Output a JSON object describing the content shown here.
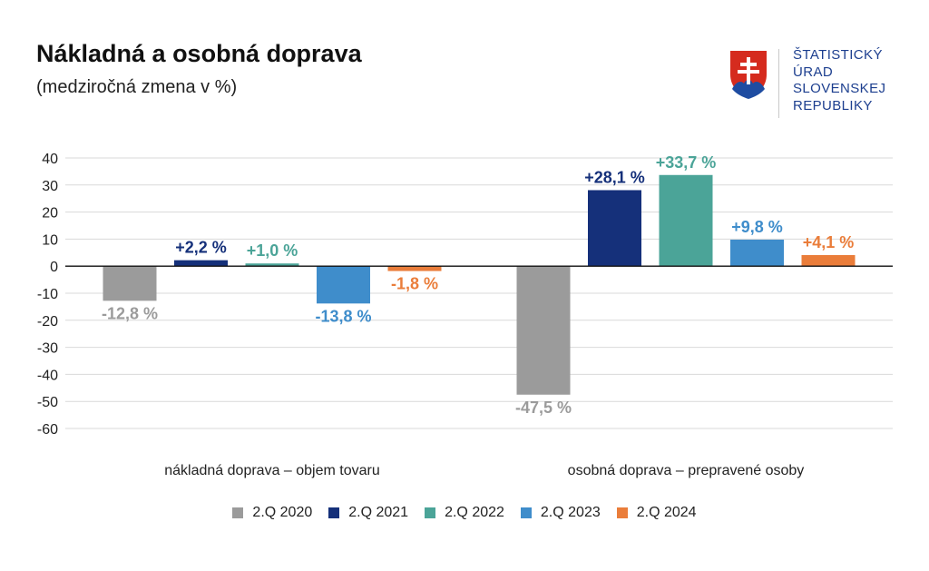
{
  "title": "Nákladná a osobná doprava",
  "subtitle": "(medziročná zmena v %)",
  "logo": {
    "lines": [
      "ŠTATISTICKÝ",
      "ÚRAD",
      "SLOVENSKEJ",
      "REPUBLIKY"
    ],
    "icon": "slovak-coat-of-arms-icon"
  },
  "colors": {
    "2020": "#9b9b9b",
    "2021": "#15307a",
    "2022": "#4ba498",
    "2023": "#3f8dcb",
    "2024": "#ea7d3a"
  },
  "chart_data": {
    "type": "bar",
    "title": "Nákladná a osobná doprava",
    "subtitle": "(medziročná zmena v %)",
    "categories": [
      "nákladná doprava – objem tovaru",
      "osobná doprava – prepravené osoby"
    ],
    "series": [
      {
        "name": "2.Q 2020",
        "values": [
          -12.8,
          -47.5
        ],
        "labels": [
          "-12,8 %",
          "-47,5 %"
        ],
        "color": "#9b9b9b"
      },
      {
        "name": "2.Q 2021",
        "values": [
          2.2,
          28.1
        ],
        "labels": [
          "+2,2 %",
          "+28,1 %"
        ],
        "color": "#15307a"
      },
      {
        "name": "2.Q 2022",
        "values": [
          1.0,
          33.7
        ],
        "labels": [
          "+1,0 %",
          "+33,7 %"
        ],
        "color": "#4ba498"
      },
      {
        "name": "2.Q 2023",
        "values": [
          -13.8,
          9.8
        ],
        "labels": [
          "-13,8 %",
          "+9,8 %"
        ],
        "color": "#3f8dcb"
      },
      {
        "name": "2.Q 2024",
        "values": [
          -1.8,
          4.1
        ],
        "labels": [
          "-1,8 %",
          "+4,1 %"
        ],
        "color": "#ea7d3a"
      }
    ],
    "yticks": [
      "40",
      "30",
      "20",
      "10",
      "0",
      "-10",
      "-20",
      "-30",
      "-40",
      "-50",
      "-60"
    ],
    "ylim": [
      -60,
      40
    ],
    "grid": true,
    "legend": "bottom"
  }
}
